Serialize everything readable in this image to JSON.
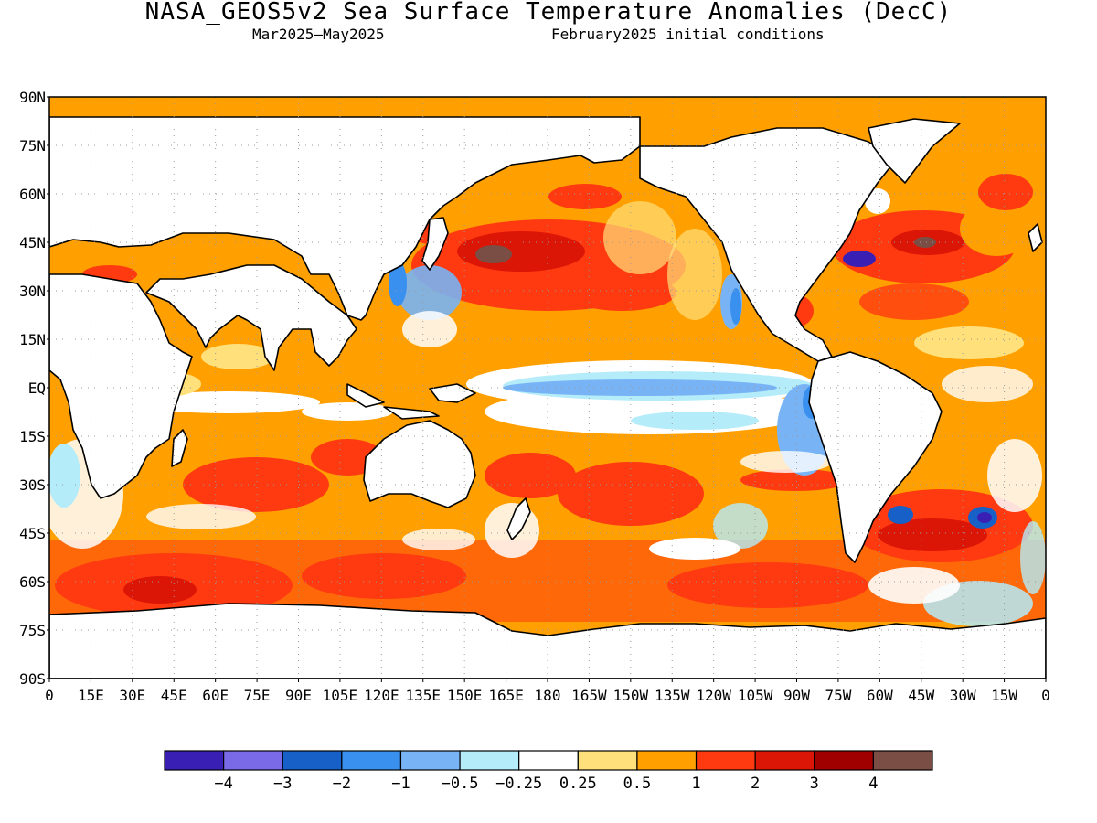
{
  "title": "NASA_GEOS5v2 Sea Surface Temperature Anomalies (DecC)",
  "subtitle_left": "Mar2025—May2025",
  "subtitle_right": "February2025 initial conditions",
  "lat_labels": [
    "90N",
    "75N",
    "60N",
    "45N",
    "30N",
    "15N",
    "EQ",
    "15S",
    "30S",
    "45S",
    "60S",
    "75S",
    "90S"
  ],
  "lon_labels": [
    "0",
    "15E",
    "30E",
    "45E",
    "60E",
    "75E",
    "90E",
    "105E",
    "120E",
    "135E",
    "150E",
    "165E",
    "180",
    "165W",
    "150W",
    "135W",
    "120W",
    "105W",
    "90W",
    "75W",
    "60W",
    "45W",
    "30W",
    "15W",
    "0"
  ],
  "colorbar": {
    "colors": [
      "#3a1fb5",
      "#7b6ae8",
      "#1660c8",
      "#3a90ee",
      "#78b4f5",
      "#b4ecfa",
      "#ffffff",
      "#ffe07a",
      "#ffa000",
      "#ff3a10",
      "#dc1606",
      "#a00000",
      "#7a4e44"
    ],
    "labels": [
      "−4",
      "−3",
      "−2",
      "−1",
      "−0.5",
      "−0.25",
      "0.25",
      "0.5",
      "1",
      "2",
      "3",
      "4"
    ]
  }
}
